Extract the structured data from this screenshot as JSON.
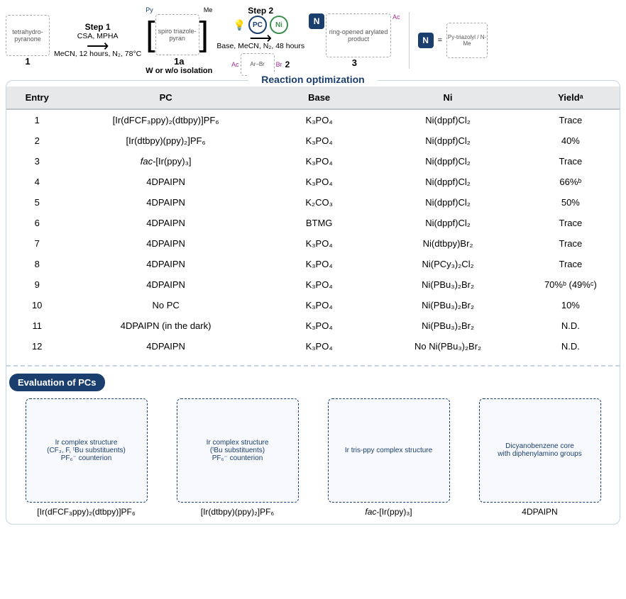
{
  "scheme": {
    "compound1_label": "1",
    "step1_label": "Step 1",
    "step1_above": "CSA, MPHA",
    "step1_below": "MeCN, 12 hours, N₂, 78°C",
    "py_label": "Py",
    "me_label": "Me",
    "compound1a_label": "1a",
    "isolation_note": "W or w/o isolation",
    "step2_label": "Step 2",
    "pc_icon_label": "PC",
    "ni_icon_label": "Ni",
    "step2_below": "Base, MeCN, N₂, 48 hours",
    "ac_label": "Ac",
    "br_label": "Br",
    "compound2_label": "2",
    "compound3_label": "3",
    "N_badge": "N",
    "equals": "="
  },
  "opt_panel_title": "Reaction optimization",
  "table": {
    "headers": {
      "entry": "Entry",
      "pc": "PC",
      "base": "Base",
      "ni": "Ni",
      "yield": "Yieldᵃ"
    },
    "rows": [
      {
        "entry": "1",
        "pc": "[Ir(dFCF₃ppy)₂(dtbpy)]PF₆",
        "base": "K₃PO₄",
        "ni": "Ni(dppf)Cl₂",
        "yield": "Trace"
      },
      {
        "entry": "2",
        "pc": "[Ir(dtbpy)(ppy)₂]PF₆",
        "base": "K₃PO₄",
        "ni": "Ni(dppf)Cl₂",
        "yield": "40%"
      },
      {
        "entry": "3",
        "pc": "fac-[Ir(ppy)₃]",
        "pc_italic_prefix": true,
        "base": "K₃PO₄",
        "ni": "Ni(dppf)Cl₂",
        "yield": "Trace"
      },
      {
        "entry": "4",
        "pc": "4DPAIPN",
        "base": "K₃PO₄",
        "ni": "Ni(dppf)Cl₂",
        "yield": "66%ᵇ"
      },
      {
        "entry": "5",
        "pc": "4DPAIPN",
        "base": "K₂CO₃",
        "ni": "Ni(dppf)Cl₂",
        "yield": "50%"
      },
      {
        "entry": "6",
        "pc": "4DPAIPN",
        "base": "BTMG",
        "ni": "Ni(dppf)Cl₂",
        "yield": "Trace"
      },
      {
        "entry": "7",
        "pc": "4DPAIPN",
        "base": "K₃PO₄",
        "ni": "Ni(dtbpy)Br₂",
        "yield": "Trace"
      },
      {
        "entry": "8",
        "pc": "4DPAIPN",
        "base": "K₃PO₄",
        "ni": "Ni(PCy₃)₂Cl₂",
        "yield": "Trace"
      },
      {
        "entry": "9",
        "pc": "4DPAIPN",
        "base": "K₃PO₄",
        "ni": "Ni(PBu₃)₂Br₂",
        "yield": "70%ᵇ (49%ᶜ)"
      },
      {
        "entry": "10",
        "pc": "No PC",
        "base": "K₃PO₄",
        "ni": "Ni(PBu₃)₂Br₂",
        "yield": "10%"
      },
      {
        "entry": "11",
        "pc": "4DPAIPN (in the dark)",
        "base": "K₃PO₄",
        "ni": "Ni(PBu₃)₂Br₂",
        "yield": "N.D."
      },
      {
        "entry": "12",
        "pc": "4DPAIPN",
        "base": "K₃PO₄",
        "ni": "No Ni(PBu₃)₂Br₂",
        "yield": "N.D."
      }
    ]
  },
  "pc_section": {
    "pill": "Evaluation of PCs",
    "items": [
      {
        "name": "[Ir(dFCF₃ppy)₂(dtbpy)]PF₆",
        "desc": "Ir complex structure\n(CF₃, F, ᵗBu substituents)\nPF₆⁻ counterion"
      },
      {
        "name": "[Ir(dtbpy)(ppy)₂]PF₆",
        "desc": "Ir complex structure\n(ᵗBu substituents)\nPF₆⁻ counterion"
      },
      {
        "name": "fac-[Ir(ppy)₃]",
        "italic_prefix": true,
        "desc": "Ir tris-ppy complex structure"
      },
      {
        "name": "4DPAIPN",
        "desc": "Dicyanobenzene core\nwith diphenylamino groups"
      }
    ]
  },
  "colors": {
    "panel_border": "#c5d3e2",
    "navy": "#1a3e6e",
    "table_header_bg": "#e7e8ea",
    "magenta": "#a0288c",
    "green": "#3e8f4f"
  }
}
